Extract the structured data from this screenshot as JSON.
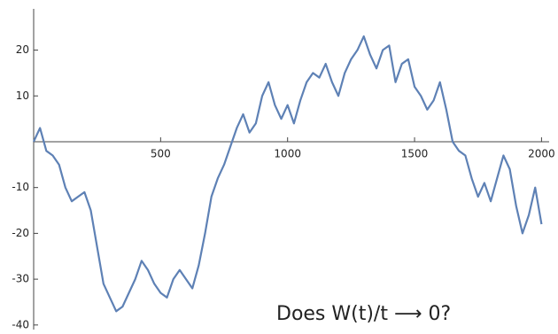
{
  "chart_data": {
    "type": "line",
    "annotation": "Does W(t)/t ⟶ 0?",
    "x": [
      0,
      25,
      50,
      75,
      100,
      125,
      150,
      175,
      200,
      225,
      250,
      275,
      300,
      325,
      350,
      375,
      400,
      425,
      450,
      475,
      500,
      525,
      550,
      575,
      600,
      625,
      650,
      675,
      700,
      725,
      750,
      775,
      800,
      825,
      850,
      875,
      900,
      925,
      950,
      975,
      1000,
      1025,
      1050,
      1075,
      1100,
      1125,
      1150,
      1175,
      1200,
      1225,
      1250,
      1275,
      1300,
      1325,
      1350,
      1375,
      1400,
      1425,
      1450,
      1475,
      1500,
      1525,
      1550,
      1575,
      1600,
      1625,
      1650,
      1675,
      1700,
      1725,
      1750,
      1775,
      1800,
      1825,
      1850,
      1875,
      1900,
      1925,
      1950,
      1975,
      2000
    ],
    "series": [
      {
        "color": "#5e81b5",
        "values": [
          0,
          3,
          -2,
          -3,
          -5,
          -10,
          -13,
          -12,
          -11,
          -15,
          -23,
          -31,
          -34,
          -37,
          -36,
          -33,
          -30,
          -26,
          -28,
          -31,
          -33,
          -34,
          -30,
          -28,
          -30,
          -32,
          -27,
          -20,
          -12,
          -8,
          -5,
          -1,
          3,
          6,
          2,
          4,
          10,
          13,
          8,
          5,
          8,
          4,
          9,
          13,
          15,
          14,
          17,
          13,
          10,
          15,
          18,
          20,
          23,
          19,
          16,
          20,
          21,
          13,
          17,
          18,
          12,
          10,
          7,
          9,
          13,
          7,
          0,
          -2,
          -3,
          -8,
          -12,
          -9,
          -13,
          -8,
          -3,
          -6,
          -14,
          -20,
          -16,
          -10,
          -18
        ]
      }
    ],
    "xlim": [
      0,
      2030
    ],
    "ylim": [
      -41,
      29
    ],
    "xticks": [
      500,
      1000,
      1500,
      2000
    ],
    "yticks": [
      -40,
      -30,
      -20,
      -10,
      10,
      20
    ]
  }
}
